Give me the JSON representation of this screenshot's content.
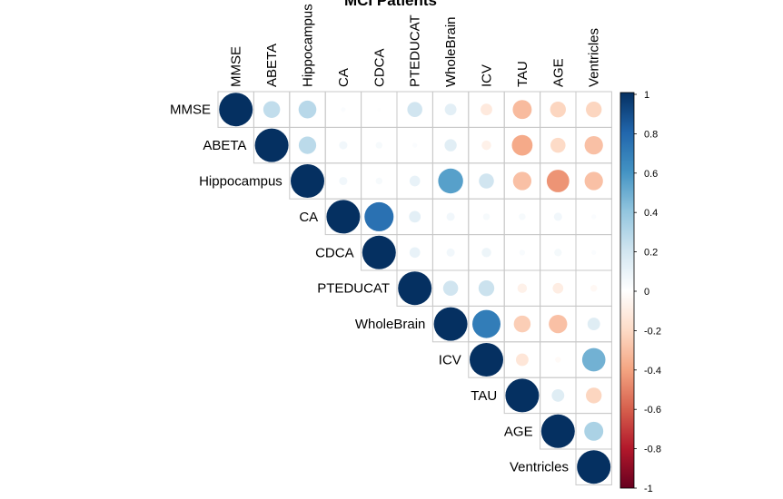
{
  "chart_data": {
    "type": "heatmap",
    "title": "MCI Patients",
    "variables": [
      "MMSE",
      "ABETA",
      "Hippocampus",
      "CA",
      "CDCA",
      "PTEDUCAT",
      "WholeBrain",
      "ICV",
      "TAU",
      "AGE",
      "Ventricles"
    ],
    "matrix": [
      [
        1.0,
        0.25,
        0.28,
        0.02,
        0.01,
        0.2,
        0.12,
        -0.12,
        -0.32,
        -0.22,
        -0.22
      ],
      [
        0.25,
        1.0,
        0.27,
        0.06,
        0.04,
        0.02,
        0.13,
        -0.08,
        -0.38,
        -0.2,
        -0.3
      ],
      [
        0.28,
        0.27,
        1.0,
        0.06,
        0.04,
        0.1,
        0.55,
        0.2,
        -0.3,
        -0.45,
        -0.3
      ],
      [
        0.02,
        0.06,
        0.06,
        1.0,
        0.75,
        0.12,
        0.06,
        0.04,
        0.04,
        0.06,
        0.02
      ],
      [
        0.01,
        0.04,
        0.04,
        0.75,
        1.0,
        0.1,
        0.06,
        0.08,
        0.03,
        0.05,
        0.02
      ],
      [
        0.2,
        0.02,
        0.1,
        0.12,
        0.1,
        1.0,
        0.2,
        0.22,
        -0.08,
        -0.1,
        -0.04
      ],
      [
        0.12,
        0.13,
        0.55,
        0.06,
        0.06,
        0.2,
        1.0,
        0.7,
        -0.25,
        -0.3,
        0.14
      ],
      [
        -0.12,
        -0.08,
        0.2,
        0.04,
        0.08,
        0.22,
        0.7,
        1.0,
        -0.14,
        -0.03,
        0.48
      ],
      [
        -0.32,
        -0.38,
        -0.3,
        0.04,
        0.03,
        -0.08,
        -0.25,
        -0.14,
        1.0,
        0.14,
        -0.22
      ],
      [
        -0.22,
        -0.2,
        -0.45,
        0.06,
        0.05,
        -0.1,
        -0.3,
        -0.03,
        0.14,
        1.0,
        0.32
      ],
      [
        -0.22,
        -0.3,
        -0.3,
        0.02,
        0.02,
        -0.04,
        0.14,
        0.48,
        -0.22,
        0.32,
        1.0
      ]
    ],
    "layout": "upper-triangle",
    "method": "circle",
    "colorbar": {
      "ticks": [
        "1",
        "0.8",
        "0.6",
        "0.4",
        "0.2",
        "0",
        "-0.2",
        "-0.4",
        "-0.6",
        "-0.8",
        "-1"
      ],
      "range": [
        -1,
        1
      ],
      "colors": [
        "#67001F",
        "#B2182B",
        "#D6604D",
        "#F4A582",
        "#FDDBC7",
        "#FFFFFF",
        "#D1E5F0",
        "#92C5DE",
        "#4393C3",
        "#2166AC",
        "#053061"
      ]
    },
    "grid": true,
    "legend": "right"
  }
}
